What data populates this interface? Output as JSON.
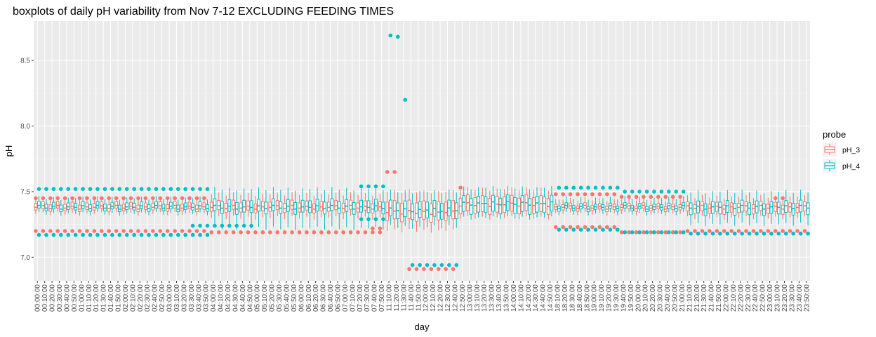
{
  "chart_data": {
    "type": "boxplot",
    "title": "boxplots of daily pH variability from Nov 7-12 EXCLUDING FEEDING TIMES",
    "xlabel": "day",
    "ylabel": "pH",
    "ylim": [
      6.82,
      8.8
    ],
    "y_ticks": [
      7.0,
      7.5,
      8.0,
      8.5
    ],
    "y_tick_labels": [
      "7.0",
      "7.5",
      "8.0",
      "8.5"
    ],
    "grid": true,
    "legend": {
      "title": "probe",
      "placement": "right",
      "entries": [
        {
          "name": "pH_3",
          "color": "#F8766D"
        },
        {
          "name": "pH_4",
          "color": "#00BFC4"
        }
      ]
    },
    "x_labels": [
      "00:00:00",
      "00:10:00",
      "00:20:00",
      "00:30:00",
      "00:40:00",
      "00:50:00",
      "01:00:00",
      "01:10:00",
      "01:20:00",
      "01:30:00",
      "01:40:00",
      "01:50:00",
      "02:00:00",
      "02:10:00",
      "02:20:00",
      "02:30:00",
      "02:40:00",
      "02:50:00",
      "03:00:00",
      "03:10:00",
      "03:20:00",
      "03:30:00",
      "03:40:00",
      "03:50:00",
      "04:00:00",
      "04:10:00",
      "04:20:00",
      "04:30:00",
      "04:40:00",
      "04:50:00",
      "05:00:00",
      "05:10:00",
      "05:20:00",
      "05:30:00",
      "05:40:00",
      "05:50:00",
      "06:00:00",
      "06:10:00",
      "06:20:00",
      "06:30:00",
      "06:40:00",
      "06:50:00",
      "07:00:00",
      "07:10:00",
      "07:20:00",
      "07:30:00",
      "07:40:00",
      "07:50:00",
      "11:10:00",
      "11:20:00",
      "11:30:00",
      "11:40:00",
      "11:50:00",
      "12:00:00",
      "12:10:00",
      "12:20:00",
      "12:30:00",
      "12:40:00",
      "12:50:00",
      "13:00:00",
      "13:10:00",
      "13:20:00",
      "13:30:00",
      "13:40:00",
      "13:50:00",
      "14:00:00",
      "14:10:00",
      "14:20:00",
      "14:30:00",
      "14:40:00",
      "14:50:00",
      "18:10:00",
      "18:20:00",
      "18:30:00",
      "18:40:00",
      "18:50:00",
      "19:00:00",
      "19:10:00",
      "19:20:00",
      "19:30:00",
      "19:40:00",
      "19:50:00",
      "20:00:00",
      "20:10:00",
      "20:20:00",
      "20:30:00",
      "20:40:00",
      "20:50:00",
      "21:00:00",
      "21:10:00",
      "21:20:00",
      "21:30:00",
      "21:40:00",
      "21:50:00",
      "22:00:00",
      "22:10:00",
      "22:20:00",
      "22:30:00",
      "22:40:00",
      "22:50:00",
      "23:00:00",
      "23:10:00",
      "23:20:00",
      "23:30:00",
      "23:40:00",
      "23:50:00"
    ],
    "x_tick_labels": [
      "00:00:00",
      "00:10:00",
      "00:20:00",
      "00:30:00",
      "00:40:00",
      "00:50:00",
      "01:00:00",
      "01:10:00",
      "01:20:00",
      "01:30:00",
      "01:40:00",
      "01:50:00",
      "02:00:00",
      "02:10:00",
      "02:20:00",
      "02:30:00",
      "02:40:00",
      "02:50:00",
      "03:00:00",
      "03:10:00",
      "03:20:00",
      "03:30:00",
      "03:40:00",
      "03:50:00",
      "04:00:00",
      "04:10:00",
      "04:20:00",
      "04:30:00",
      "04:40:00",
      "04:50:00",
      "05:00:00",
      "05:10:00",
      "05:20:00",
      "05:30:00",
      "05:40:00",
      "05:50:00",
      "06:00:00",
      "06:10:00",
      "06:20:00",
      "06:30:00",
      "06:40:00",
      "06:50:00",
      "07:00:00",
      "07:10:00",
      "07:20:00",
      "07:30:00",
      "07:40:00",
      "07:50:00",
      "11:10:00",
      "11:20:00",
      "11:30:00",
      "11:40:00",
      "11:50:00",
      "12:00:00",
      "12:10:00",
      "12:20:00",
      "12:30:00",
      "12:40:00",
      "12:50:00",
      "13:00:00",
      "13:10:00",
      "13:20:00",
      "13:30:00",
      "13:40:00",
      "13:50:00",
      "14:00:00",
      "14:10:00",
      "14:20:00",
      "14:30:00",
      "14:40:00",
      "14:50:00",
      "18:10:00",
      "18:20:00",
      "18:30:00",
      "18:40:00",
      "18:50:00",
      "19:00:00",
      "19:10:00",
      "19:20:00",
      "19:30:00",
      "19:40:00",
      "19:50:00",
      "20:00:00",
      "20:10:00",
      "20:20:00",
      "20:30:00",
      "20:40:00",
      "20:50:00",
      "21:00:00",
      "21:10:00",
      "21:20:00",
      "21:30:00",
      "21:40:00",
      "21:50:00",
      "22:00:00",
      "22:10:00",
      "22:20:00",
      "22:30:00",
      "22:40:00",
      "22:50:00",
      "23:00:00",
      "23:10:00",
      "23:20:00",
      "23:30:00",
      "23:40:00",
      "23:50:00"
    ],
    "series": [
      {
        "name": "pH_3",
        "color": "#F8766D"
      },
      {
        "name": "pH_4",
        "color": "#00BFC4"
      }
    ],
    "groups": [
      {
        "segment": "00:00-03:50",
        "from": 0,
        "to": 23,
        "pH_3": {
          "min": 7.33,
          "q1": 7.36,
          "median": 7.38,
          "q3": 7.41,
          "max": 7.45
        },
        "pH_4": {
          "min": 7.33,
          "q1": 7.36,
          "median": 7.38,
          "q3": 7.41,
          "max": 7.45
        }
      },
      {
        "segment": "04:00-07:50",
        "from": 24,
        "to": 47,
        "pH_3": {
          "min": 7.3,
          "q1": 7.35,
          "median": 7.38,
          "q3": 7.42,
          "max": 7.48
        },
        "pH_4": {
          "min": 7.22,
          "q1": 7.34,
          "median": 7.38,
          "q3": 7.43,
          "max": 7.52
        }
      },
      {
        "segment": "11:10-12:40",
        "from": 48,
        "to": 57,
        "pH_3": {
          "min": 7.2,
          "q1": 7.28,
          "median": 7.34,
          "q3": 7.42,
          "max": 7.5
        },
        "pH_4": {
          "min": 7.23,
          "q1": 7.3,
          "median": 7.36,
          "q3": 7.42,
          "max": 7.5
        }
      },
      {
        "segment": "12:50-14:50",
        "from": 58,
        "to": 70,
        "pH_3": {
          "min": 7.3,
          "q1": 7.34,
          "median": 7.4,
          "q3": 7.46,
          "max": 7.52
        },
        "pH_4": {
          "min": 7.3,
          "q1": 7.34,
          "median": 7.41,
          "q3": 7.46,
          "max": 7.53
        }
      },
      {
        "segment": "18:10-21:00",
        "from": 71,
        "to": 88,
        "pH_3": {
          "min": 7.33,
          "q1": 7.36,
          "median": 7.38,
          "q3": 7.4,
          "max": 7.44
        },
        "pH_4": {
          "min": 7.33,
          "q1": 7.36,
          "median": 7.38,
          "q3": 7.4,
          "max": 7.45
        }
      },
      {
        "segment": "21:10-23:50",
        "from": 89,
        "to": 105,
        "pH_3": {
          "min": 7.3,
          "q1": 7.34,
          "median": 7.38,
          "q3": 7.41,
          "max": 7.46
        },
        "pH_4": {
          "min": 7.25,
          "q1": 7.33,
          "median": 7.38,
          "q3": 7.42,
          "max": 7.5
        }
      }
    ],
    "outliers": {
      "pH_3": [
        {
          "from": 0,
          "to": 23,
          "y": [
            7.2,
            7.45
          ]
        },
        {
          "from": 24,
          "to": 47,
          "y": [
            7.19
          ]
        },
        {
          "from": 46,
          "to": 47,
          "y": [
            7.22
          ]
        },
        {
          "from": 48,
          "to": 49,
          "y": [
            7.65
          ]
        },
        {
          "from": 51,
          "to": 57,
          "y": [
            6.91
          ]
        },
        {
          "from": 58,
          "to": 58,
          "y": [
            7.53
          ]
        },
        {
          "from": 71,
          "to": 79,
          "y": [
            7.23,
            7.48
          ]
        },
        {
          "from": 80,
          "to": 88,
          "y": [
            7.19,
            7.46
          ]
        },
        {
          "from": 89,
          "to": 105,
          "y": [
            7.2
          ]
        },
        {
          "from": 101,
          "to": 102,
          "y": [
            7.45
          ]
        }
      ],
      "pH_4": [
        {
          "from": 0,
          "to": 23,
          "y": [
            7.17,
            7.52
          ]
        },
        {
          "from": 21,
          "to": 29,
          "y": [
            7.24
          ]
        },
        {
          "from": 44,
          "to": 47,
          "y": [
            7.54,
            7.29
          ]
        },
        {
          "from": 48,
          "to": 48,
          "y": [
            8.69
          ]
        },
        {
          "from": 49,
          "to": 49,
          "y": [
            8.68
          ]
        },
        {
          "from": 50,
          "to": 50,
          "y": [
            8.2
          ]
        },
        {
          "from": 51,
          "to": 57,
          "y": [
            6.94
          ]
        },
        {
          "from": 71,
          "to": 79,
          "y": [
            7.21,
            7.53
          ]
        },
        {
          "from": 80,
          "to": 88,
          "y": [
            7.19,
            7.5
          ]
        },
        {
          "from": 89,
          "to": 105,
          "y": [
            7.18
          ]
        }
      ]
    }
  }
}
